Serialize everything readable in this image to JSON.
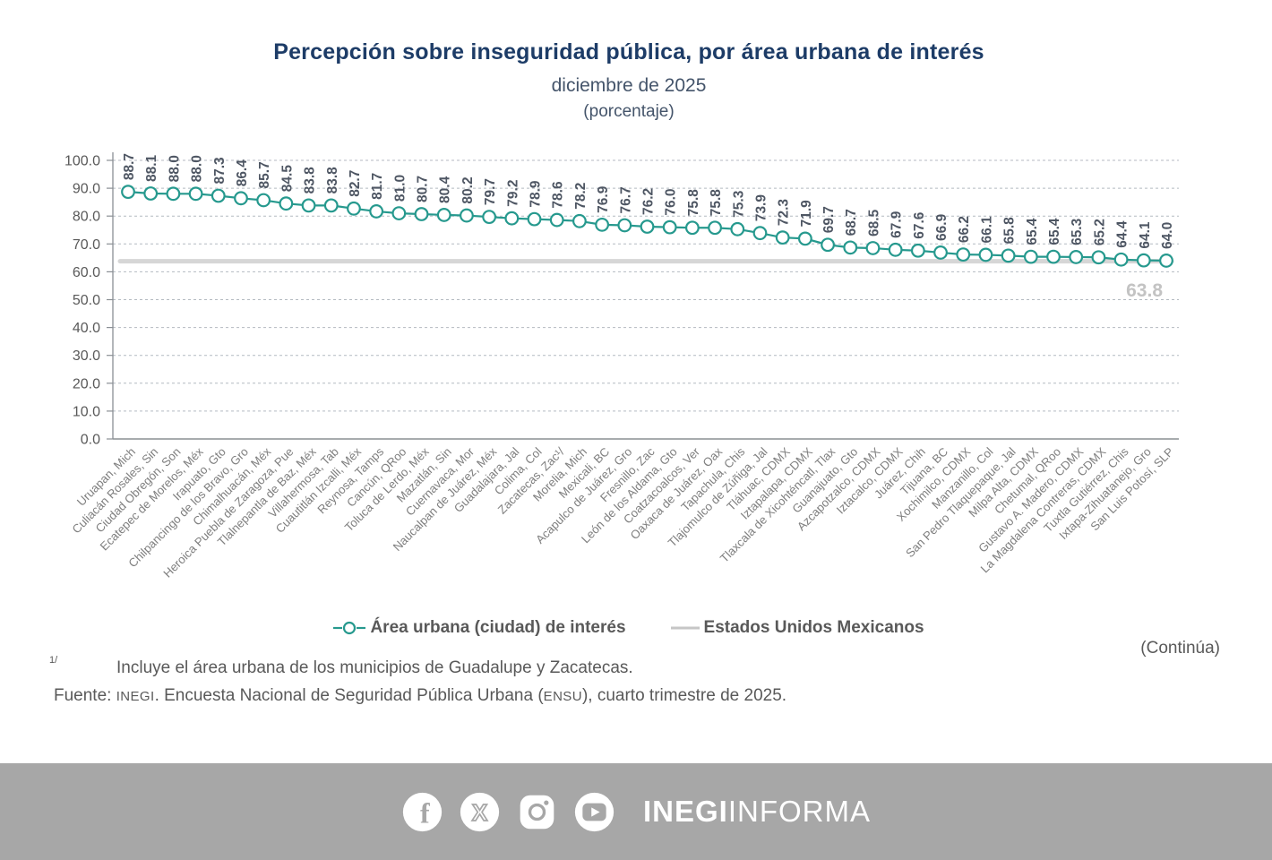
{
  "header": {
    "title": "Percepción sobre inseguridad pública, por área urbana de interés",
    "subtitle": "diciembre de 2025",
    "unit_label": "(porcentaje)"
  },
  "chart_data": {
    "type": "line",
    "title": "Percepción sobre inseguridad pública, por área urbana de interés",
    "xlabel": "",
    "ylabel": "",
    "ylim": [
      0,
      100
    ],
    "ytick_step": 10,
    "grid": "dashed-horizontal",
    "legend_position": "bottom",
    "categories": [
      "Uruapan, Mich",
      "Culiacán Rosales, Sin",
      "Ciudad Obregón, Son",
      "Ecatepec de Morelos, Méx",
      "Irapuato, Gto",
      "Chilpancingo de los Bravo, Gro",
      "Chimalhuacán, Méx",
      "Heroica Puebla de Zaragoza, Pue",
      "Tlalnepantla de Baz, Méx",
      "Villahermosa, Tab",
      "Cuautitlán Izcalli, Méx",
      "Reynosa, Tamps",
      "Cancún, QRoo",
      "Toluca de Lerdo, Méx",
      "Mazatlán, Sin",
      "Cuernavaca, Mor",
      "Naucalpan de Juárez, Méx",
      "Guadalajara, Jal",
      "Colima, Col",
      "Zacatecas, Zac¹/",
      "Morelia, Mich",
      "Mexicali, BC",
      "Acapulco de Juárez, Gro",
      "Fresnillo, Zac",
      "León de los Aldama, Gto",
      "Coatzacoalcos, Ver",
      "Oaxaca de Juárez, Oax",
      "Tapachula, Chis",
      "Tlajomulco de Zúñiga, Jal",
      "Tláhuac, CDMX",
      "Iztapalapa, CDMX",
      "Tlaxcala de Xicohténcatl, Tlax",
      "Guanajuato, Gto",
      "Azcapotzalco, CDMX",
      "Iztacalco, CDMX",
      "Juárez, Chih",
      "Tijuana, BC",
      "Xochimilco, CDMX",
      "Manzanillo, Col",
      "San Pedro Tlaquepaque, Jal",
      "Milpa Alta, CDMX",
      "Chetumal, QRoo",
      "Gustavo A. Madero, CDMX",
      "La Magdalena Contreras, CDMX",
      "Tuxtla Gutiérrez, Chis",
      "Ixtapa-Zihuatanejo, Gro",
      "San Luis Potosí, SLP"
    ],
    "series": [
      {
        "name": "Área urbana (ciudad) de interés",
        "type": "line-markers",
        "color": "#26998e",
        "values": [
          88.7,
          88.1,
          88.0,
          88.0,
          87.3,
          86.4,
          85.7,
          84.5,
          83.8,
          83.8,
          82.7,
          81.7,
          81.0,
          80.7,
          80.4,
          80.2,
          79.7,
          79.2,
          78.9,
          78.6,
          78.2,
          76.9,
          76.7,
          76.2,
          76.0,
          75.8,
          75.8,
          75.3,
          73.9,
          72.3,
          71.9,
          69.7,
          68.7,
          68.5,
          67.9,
          67.6,
          66.9,
          66.2,
          66.1,
          65.8,
          65.4,
          65.4,
          65.3,
          65.2,
          64.4,
          64.1,
          64.0
        ]
      },
      {
        "name": "Estados Unidos Mexicanos",
        "type": "reference-line",
        "color": "#d6d6d6",
        "value": 63.8
      }
    ],
    "reference_label": "63.8"
  },
  "legend": {
    "series_label": "Área urbana (ciudad) de interés",
    "reference_label": "Estados Unidos Mexicanos"
  },
  "notes": {
    "continua": "(Continúa)",
    "footnote_marker": "1/",
    "footnote_text": "Incluye el área urbana de los municipios de Guadalupe y Zacatecas.",
    "source_prefix": "Fuente: ",
    "source_inegi": "INEGI",
    "source_mid": ". Encuesta Nacional de Seguridad Pública Urbana (",
    "source_ensu": "ENSU",
    "source_suffix": "), cuarto trimestre de 2025."
  },
  "footer": {
    "bar_color": "#a7a7a7",
    "icons": [
      "facebook-icon",
      "x-icon",
      "instagram-icon",
      "youtube-icon"
    ],
    "brand_bold": "INEGI",
    "brand_regular": "INFORMA"
  },
  "colors": {
    "title": "#1d3c67",
    "series_teal": "#26998e",
    "reference_gray": "#d6d6d6",
    "value_label": "#4e5663",
    "axis_label": "#595959",
    "category_label": "#7f7f7f"
  }
}
